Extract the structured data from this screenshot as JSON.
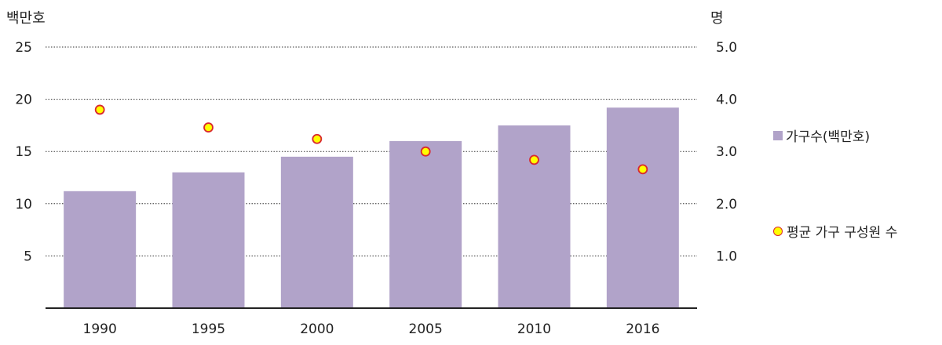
{
  "chart_data": {
    "type": "bar",
    "categories": [
      "1990",
      "1995",
      "2000",
      "2005",
      "2010",
      "2016"
    ],
    "series": [
      {
        "name": "가구수(백만호)",
        "type": "bar",
        "axis": "left",
        "values": [
          11.2,
          13.0,
          14.5,
          16.0,
          17.5,
          19.2
        ],
        "color": "#b1a3c9"
      },
      {
        "name": "평균 가구 구성원 수",
        "type": "scatter",
        "axis": "right",
        "values": [
          3.8,
          3.46,
          3.24,
          3.0,
          2.84,
          2.66
        ],
        "color": "#ffff00",
        "edge_color": "#d9272e"
      }
    ],
    "left_axis": {
      "unit": "백만호",
      "min": 0,
      "max": 25,
      "ticks": [
        5,
        10,
        15,
        20,
        25
      ],
      "tick_labels": [
        "5",
        "10",
        "15",
        "20",
        "25"
      ]
    },
    "right_axis": {
      "unit": "명",
      "min": 0,
      "max": 5,
      "ticks": [
        1,
        2,
        3,
        4,
        5
      ],
      "tick_labels": [
        "1.0",
        "2.0",
        "3.0",
        "4.0",
        "5.0"
      ]
    },
    "grid": "horizontal dotted",
    "legend_position": "right"
  }
}
